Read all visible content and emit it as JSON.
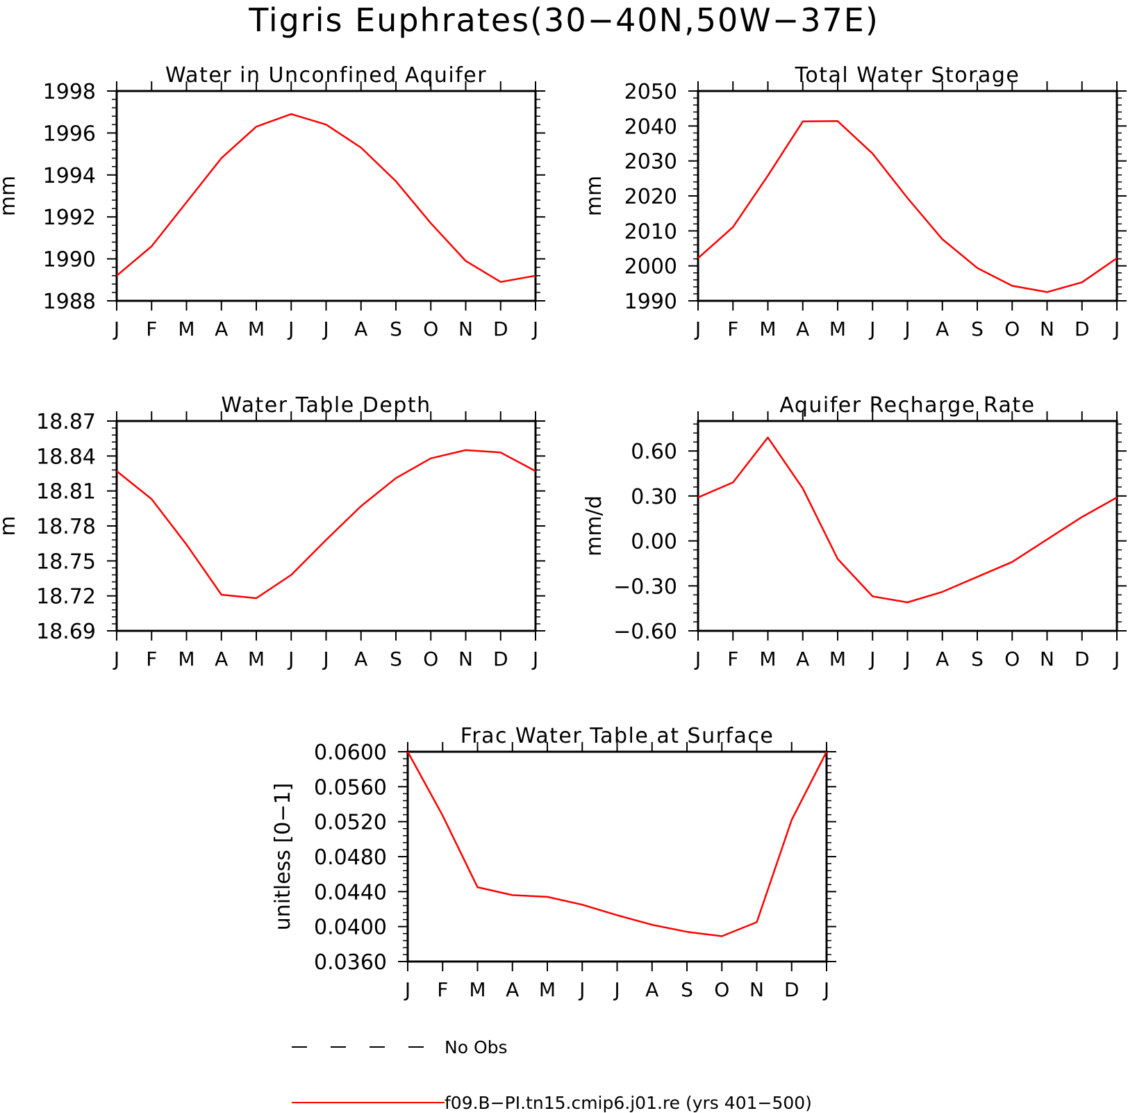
{
  "title": "Tigris Euphrates(30−40N,50W−37E)",
  "colors": {
    "model": "#ff0000",
    "obs": "#000000",
    "axis": "#000000"
  },
  "legend": {
    "obs_label": "No Obs",
    "model_label": "f09.B−PI.tn15.cmip6.j01.re (yrs 401−500)"
  },
  "month_labels": [
    "J",
    "F",
    "M",
    "A",
    "M",
    "J",
    "J",
    "A",
    "S",
    "O",
    "N",
    "D",
    "J"
  ],
  "chart_data": [
    {
      "type": "line",
      "title": "Water in Unconfined Aquifer",
      "ylabel": "mm",
      "ylim": [
        1988,
        1998
      ],
      "yticks": [
        "1988",
        "1990",
        "1992",
        "1994",
        "1996",
        "1998"
      ],
      "x": [
        "J",
        "F",
        "M",
        "A",
        "M",
        "J",
        "J",
        "A",
        "S",
        "O",
        "N",
        "D",
        "J"
      ],
      "series": [
        {
          "values": [
            1989.2,
            1990.6,
            1992.7,
            1994.8,
            1996.3,
            1996.9,
            1996.4,
            1995.3,
            1993.7,
            1991.7,
            1989.9,
            1988.9,
            1989.2
          ]
        }
      ]
    },
    {
      "type": "line",
      "title": "Total Water Storage",
      "ylabel": "mm",
      "ylim": [
        1990,
        2050
      ],
      "yticks": [
        "1990",
        "2000",
        "2010",
        "2020",
        "2030",
        "2040",
        "2050"
      ],
      "x": [
        "J",
        "F",
        "M",
        "A",
        "M",
        "J",
        "J",
        "A",
        "S",
        "O",
        "N",
        "D",
        "J"
      ],
      "series": [
        {
          "values": [
            2002.2,
            2011.1,
            2025.8,
            2041.3,
            2041.4,
            2032.1,
            2019.4,
            2007.6,
            1999.4,
            1994.3,
            1992.5,
            1995.3,
            2002.2
          ]
        }
      ]
    },
    {
      "type": "line",
      "title": "Water Table Depth",
      "ylabel": "m",
      "ylim": [
        18.69,
        18.87
      ],
      "yticks": [
        "18.69",
        "18.72",
        "18.75",
        "18.78",
        "18.81",
        "18.84",
        "18.87"
      ],
      "x": [
        "J",
        "F",
        "M",
        "A",
        "M",
        "J",
        "J",
        "A",
        "S",
        "O",
        "N",
        "D",
        "J"
      ],
      "series": [
        {
          "values": [
            18.827,
            18.803,
            18.764,
            18.721,
            18.718,
            18.738,
            18.768,
            18.797,
            18.821,
            18.838,
            18.845,
            18.843,
            18.827
          ]
        }
      ]
    },
    {
      "type": "line",
      "title": "Aquifer Recharge Rate",
      "ylabel": "mm/d",
      "ylim": [
        -0.6,
        0.8
      ],
      "yticks": [
        "−0.60",
        "−0.30",
        "0.00",
        "0.30",
        "0.60"
      ],
      "ytick_values": [
        -0.6,
        -0.3,
        0.0,
        0.3,
        0.6
      ],
      "x": [
        "J",
        "F",
        "M",
        "A",
        "M",
        "J",
        "J",
        "A",
        "S",
        "O",
        "N",
        "D",
        "J"
      ],
      "series": [
        {
          "values": [
            0.29,
            0.39,
            0.69,
            0.35,
            -0.12,
            -0.37,
            -0.41,
            -0.34,
            -0.24,
            -0.14,
            0.01,
            0.16,
            0.29
          ]
        }
      ]
    },
    {
      "type": "line",
      "title": "Frac Water Table at Surface",
      "ylabel": "unitless [0−1]",
      "ylim": [
        0.036,
        0.06
      ],
      "yticks": [
        "0.0360",
        "0.0400",
        "0.0440",
        "0.0480",
        "0.0520",
        "0.0560",
        "0.0600"
      ],
      "x": [
        "J",
        "F",
        "M",
        "A",
        "M",
        "J",
        "J",
        "A",
        "S",
        "O",
        "N",
        "D",
        "J"
      ],
      "series": [
        {
          "values": [
            0.06,
            0.0527,
            0.0445,
            0.0436,
            0.0434,
            0.0425,
            0.0413,
            0.0402,
            0.0394,
            0.0389,
            0.0405,
            0.0522,
            0.06
          ]
        }
      ]
    }
  ]
}
